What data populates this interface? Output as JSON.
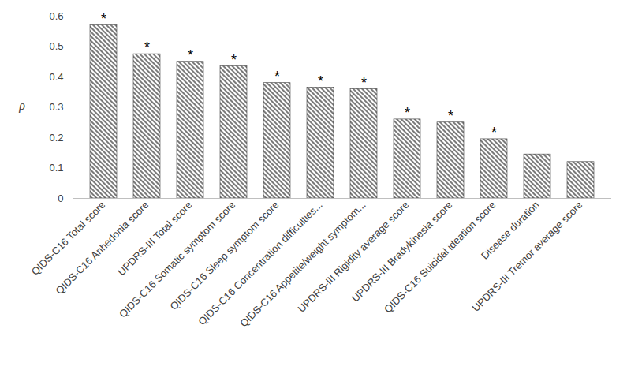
{
  "chart_data": {
    "type": "bar",
    "y_label": "ρ",
    "categories": [
      "QIDS-C16 Total score",
      "QIDS-C16 Anhedonia score",
      "UPDRS-III Total score",
      "QIDS-C16 Somatic symptom score",
      "QIDS-C16 Sleep symptom score",
      "QIDS-C16 Concentration difficulties...",
      "QIDS-C16 Appetite/weight symptom...",
      "UPDRS-III Rigidity average score",
      "UPDRS-III Bradykinesia score",
      "QIDS-C16 Suicidal ideation score",
      "Disease duration",
      "UPDRS-III Tremor average score"
    ],
    "values": [
      0.57,
      0.475,
      0.45,
      0.435,
      0.38,
      0.365,
      0.36,
      0.26,
      0.25,
      0.195,
      0.145,
      0.12
    ],
    "annotations": [
      "*",
      "*",
      "*",
      "*",
      "*",
      "*",
      "*",
      "*",
      "*",
      "*",
      null,
      null
    ],
    "color": "#404040",
    "ylim": [
      0,
      0.6
    ],
    "yticks": [
      0,
      0.1,
      0.2,
      0.3,
      0.4,
      0.5,
      0.6
    ],
    "grid": false
  }
}
